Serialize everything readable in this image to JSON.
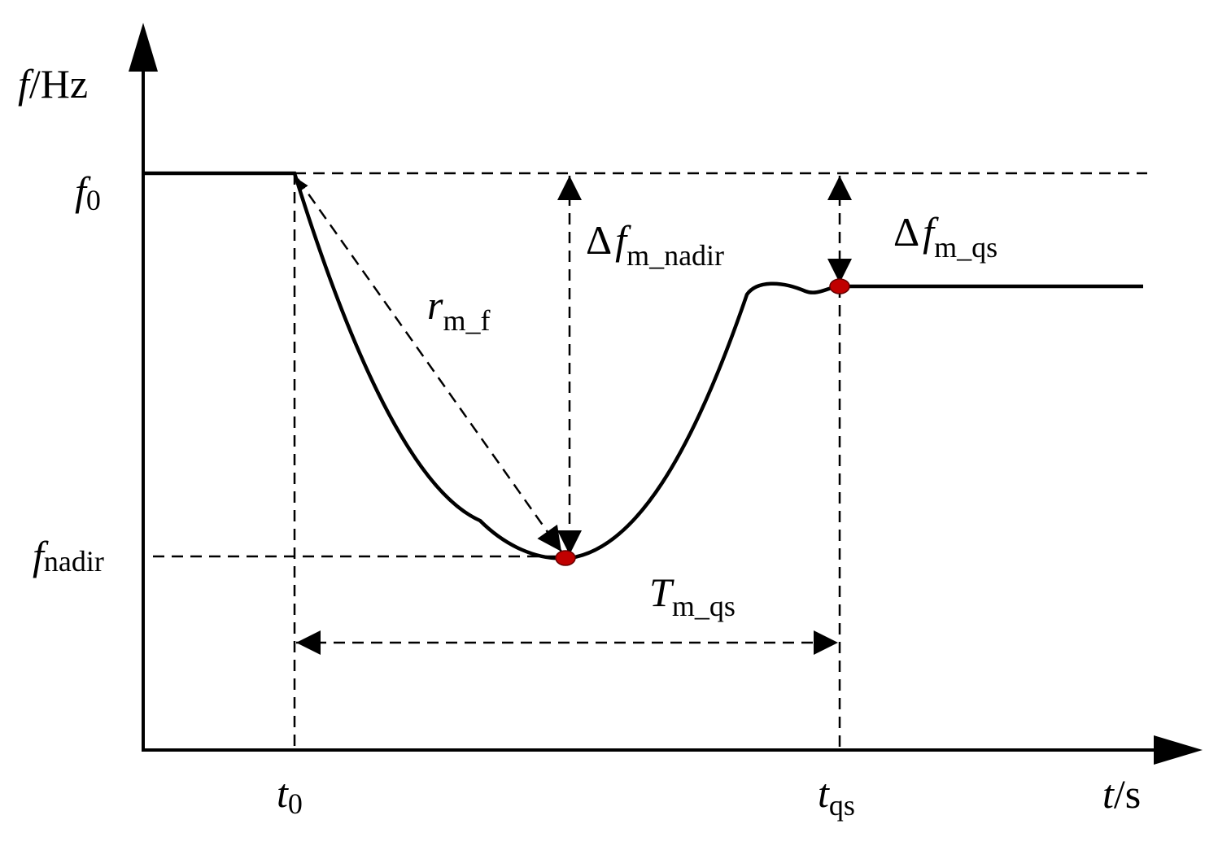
{
  "axes": {
    "y_label": {
      "main": "f",
      "unit": "/Hz"
    },
    "x_label": {
      "main": "t",
      "unit": "/s"
    }
  },
  "labels": {
    "f0": {
      "main": "f",
      "sub": "0"
    },
    "f_nadir": {
      "main": "f",
      "sub": "nadir"
    },
    "t0": {
      "main": "t",
      "sub": "0"
    },
    "t_qs": {
      "main": "t",
      "sub": "qs"
    },
    "delta_f_nadir": {
      "prefix": "Δ",
      "main": "f",
      "sub": "m_nadir"
    },
    "delta_f_qs": {
      "prefix": "Δ",
      "main": "f",
      "sub": "m_qs"
    },
    "r_mf": {
      "main": "r",
      "sub": "m_f"
    },
    "T_mqs": {
      "main": "T",
      "sub": "m_qs"
    }
  }
}
